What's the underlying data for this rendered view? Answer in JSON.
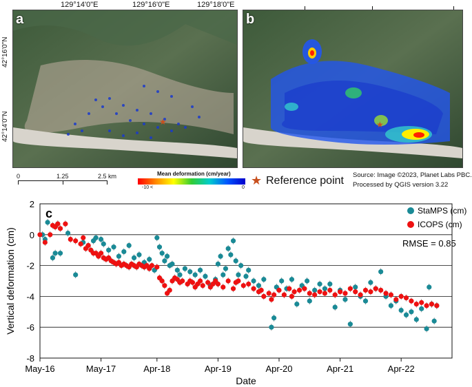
{
  "map": {
    "top_ticks": [
      "129°14'0\"E",
      "129°16'0\"E",
      "129°18'0\"E"
    ],
    "left_ticks": [
      "42°16'0\"N",
      "42°14'0\"N"
    ],
    "panel_a_label": "a",
    "panel_b_label": "b",
    "scale": {
      "labels": [
        "0",
        "1.25",
        "2.5 km"
      ]
    },
    "legend": {
      "title": "Mean deformation (cm/year)",
      "min_label": "-10 <",
      "max_label": "0",
      "colors": [
        "#ff0000",
        "#ff8800",
        "#ffff00",
        "#33cc33",
        "#00cccc",
        "#0055ff",
        "#0000cc"
      ]
    },
    "reference_label": "Reference point",
    "reference_color": "#c8501e",
    "source_line1": "Source: Image ©2023, Planet Labs PBC.",
    "source_line2": "Processed by QGIS version 3.22"
  },
  "chart_data": {
    "type": "scatter",
    "panel_label": "c",
    "xlabel": "Date",
    "ylabel": "Vertical deformation (cm)",
    "x_ticks": [
      "May-16",
      "May-17",
      "Apr-18",
      "Apr-19",
      "Apr-20",
      "Apr-21",
      "Apr-22"
    ],
    "y_ticks": [
      "2",
      "0",
      "-2",
      "-4",
      "-6",
      "-8"
    ],
    "ylim": [
      -8,
      2
    ],
    "xlim_months": [
      0,
      81
    ],
    "x_tick_months": [
      0,
      12,
      23,
      35,
      47,
      59,
      71
    ],
    "legend": [
      "StaMPS (cm)",
      "ICOPS (cm)"
    ],
    "annotation": "RMSE = 0.85",
    "series": [
      {
        "name": "StaMPS (cm)",
        "color": "#1a8a96",
        "points": [
          [
            0.5,
            0.0
          ],
          [
            1.0,
            -0.3
          ],
          [
            1.5,
            0.8
          ],
          [
            2.5,
            -1.5
          ],
          [
            3.0,
            -1.2
          ],
          [
            3.5,
            0.7
          ],
          [
            4.0,
            -1.2
          ],
          [
            5.5,
            0.1
          ],
          [
            7.0,
            -2.6
          ],
          [
            8.5,
            -0.5
          ],
          [
            9.5,
            -0.7
          ],
          [
            10.5,
            -0.4
          ],
          [
            11.0,
            -0.2
          ],
          [
            12.0,
            -0.3
          ],
          [
            12.5,
            -0.6
          ],
          [
            13.5,
            -1.0
          ],
          [
            14.5,
            -0.8
          ],
          [
            15.5,
            -1.4
          ],
          [
            16.5,
            -1.1
          ],
          [
            17.5,
            -0.7
          ],
          [
            18.5,
            -1.5
          ],
          [
            19.5,
            -1.3
          ],
          [
            20.5,
            -1.8
          ],
          [
            21.5,
            -1.6
          ],
          [
            22.5,
            -2.3
          ],
          [
            23.0,
            -0.2
          ],
          [
            23.5,
            -0.8
          ],
          [
            24.0,
            -1.2
          ],
          [
            24.5,
            -1.7
          ],
          [
            25.0,
            -1.4
          ],
          [
            25.5,
            -2.0
          ],
          [
            26.0,
            -1.9
          ],
          [
            27.0,
            -2.3
          ],
          [
            27.5,
            -2.6
          ],
          [
            28.5,
            -2.2
          ],
          [
            29.5,
            -2.4
          ],
          [
            30.5,
            -2.6
          ],
          [
            31.5,
            -2.3
          ],
          [
            32.5,
            -2.7
          ],
          [
            33.5,
            -3.3
          ],
          [
            34.5,
            -2.9
          ],
          [
            35.0,
            -1.9
          ],
          [
            35.5,
            -1.4
          ],
          [
            36.0,
            -2.6
          ],
          [
            36.5,
            -2.2
          ],
          [
            37.0,
            -0.9
          ],
          [
            37.5,
            -1.3
          ],
          [
            38.0,
            -0.4
          ],
          [
            38.5,
            -1.7
          ],
          [
            39.0,
            -2.6
          ],
          [
            39.5,
            -2.0
          ],
          [
            40.5,
            -2.7
          ],
          [
            41.0,
            -2.3
          ],
          [
            42.0,
            -3.0
          ],
          [
            43.0,
            -3.3
          ],
          [
            44.0,
            -2.9
          ],
          [
            45.5,
            -6.0
          ],
          [
            46.0,
            -5.4
          ],
          [
            46.5,
            -3.4
          ],
          [
            47.5,
            -3.0
          ],
          [
            48.5,
            -3.5
          ],
          [
            49.5,
            -2.9
          ],
          [
            50.5,
            -4.5
          ],
          [
            51.5,
            -3.3
          ],
          [
            52.5,
            -3.0
          ],
          [
            53.0,
            -4.3
          ],
          [
            54.0,
            -3.6
          ],
          [
            55.0,
            -3.2
          ],
          [
            56.0,
            -3.5
          ],
          [
            57.0,
            -3.2
          ],
          [
            58.0,
            -4.7
          ],
          [
            59.0,
            -3.6
          ],
          [
            60.0,
            -4.2
          ],
          [
            61.0,
            -5.8
          ],
          [
            62.0,
            -3.4
          ],
          [
            63.0,
            -4.0
          ],
          [
            64.0,
            -4.3
          ],
          [
            65.0,
            -3.1
          ],
          [
            66.0,
            -3.5
          ],
          [
            67.0,
            -2.4
          ],
          [
            68.0,
            -4.0
          ],
          [
            69.0,
            -4.6
          ],
          [
            70.0,
            -4.3
          ],
          [
            71.0,
            -4.9
          ],
          [
            72.0,
            -5.2
          ],
          [
            73.0,
            -5.0
          ],
          [
            74.0,
            -5.5
          ],
          [
            75.0,
            -4.8
          ],
          [
            76.0,
            -6.1
          ],
          [
            76.5,
            -3.4
          ],
          [
            77.0,
            -4.5
          ],
          [
            77.5,
            -5.6
          ],
          [
            78.0,
            -4.6
          ]
        ]
      },
      {
        "name": "ICOPS (cm)",
        "color": "#ee1111",
        "points": [
          [
            0.0,
            0.0
          ],
          [
            1.0,
            -0.5
          ],
          [
            2.0,
            0.0
          ],
          [
            2.5,
            0.6
          ],
          [
            3.0,
            0.5
          ],
          [
            3.5,
            0.7
          ],
          [
            4.0,
            0.4
          ],
          [
            5.0,
            0.7
          ],
          [
            6.0,
            -0.3
          ],
          [
            7.0,
            -0.4
          ],
          [
            8.0,
            -0.6
          ],
          [
            8.5,
            -0.2
          ],
          [
            9.0,
            -0.9
          ],
          [
            9.5,
            -0.7
          ],
          [
            10.0,
            -1.0
          ],
          [
            10.5,
            -1.2
          ],
          [
            11.0,
            -1.2
          ],
          [
            11.5,
            -1.4
          ],
          [
            12.0,
            -1.2
          ],
          [
            12.5,
            -1.5
          ],
          [
            13.0,
            -1.6
          ],
          [
            13.5,
            -1.5
          ],
          [
            14.0,
            -1.7
          ],
          [
            14.5,
            -1.8
          ],
          [
            15.0,
            -1.9
          ],
          [
            15.5,
            -1.8
          ],
          [
            16.0,
            -2.0
          ],
          [
            16.5,
            -1.9
          ],
          [
            17.0,
            -2.0
          ],
          [
            17.5,
            -2.1
          ],
          [
            18.0,
            -1.9
          ],
          [
            18.5,
            -2.0
          ],
          [
            19.0,
            -2.1
          ],
          [
            19.5,
            -1.9
          ],
          [
            20.0,
            -2.0
          ],
          [
            20.5,
            -2.1
          ],
          [
            21.0,
            -2.0
          ],
          [
            21.5,
            -2.2
          ],
          [
            22.0,
            -2.0
          ],
          [
            23.0,
            -2.1
          ],
          [
            23.5,
            -2.8
          ],
          [
            24.0,
            -3.0
          ],
          [
            24.5,
            -3.3
          ],
          [
            25.0,
            -3.8
          ],
          [
            25.5,
            -3.6
          ],
          [
            26.0,
            -3.0
          ],
          [
            26.5,
            -2.8
          ],
          [
            27.0,
            -2.9
          ],
          [
            27.5,
            -3.1
          ],
          [
            28.0,
            -3.0
          ],
          [
            29.0,
            -3.2
          ],
          [
            29.5,
            -3.0
          ],
          [
            30.0,
            -3.1
          ],
          [
            30.5,
            -3.4
          ],
          [
            31.0,
            -3.2
          ],
          [
            31.5,
            -3.0
          ],
          [
            32.0,
            -3.3
          ],
          [
            33.0,
            -3.1
          ],
          [
            33.5,
            -3.4
          ],
          [
            34.0,
            -3.2
          ],
          [
            34.5,
            -3.0
          ],
          [
            35.0,
            -3.2
          ],
          [
            36.0,
            -3.4
          ],
          [
            37.0,
            -3.0
          ],
          [
            38.0,
            -3.5
          ],
          [
            38.5,
            -3.1
          ],
          [
            39.0,
            -3.0
          ],
          [
            40.0,
            -3.3
          ],
          [
            41.0,
            -3.2
          ],
          [
            42.0,
            -3.5
          ],
          [
            43.0,
            -3.7
          ],
          [
            43.5,
            -3.6
          ],
          [
            44.0,
            -4.0
          ],
          [
            45.0,
            -3.8
          ],
          [
            45.5,
            -4.2
          ],
          [
            46.0,
            -3.9
          ],
          [
            47.0,
            -3.6
          ],
          [
            48.0,
            -3.9
          ],
          [
            49.0,
            -3.5
          ],
          [
            49.5,
            -4.0
          ],
          [
            50.0,
            -3.7
          ],
          [
            51.0,
            -3.6
          ],
          [
            52.0,
            -3.5
          ],
          [
            53.0,
            -3.8
          ],
          [
            54.0,
            -3.9
          ],
          [
            55.0,
            -3.7
          ],
          [
            56.0,
            -3.8
          ],
          [
            57.0,
            -3.6
          ],
          [
            58.0,
            -3.9
          ],
          [
            59.0,
            -3.7
          ],
          [
            60.0,
            -3.8
          ],
          [
            61.0,
            -3.5
          ],
          [
            62.0,
            -3.7
          ],
          [
            63.0,
            -3.9
          ],
          [
            64.0,
            -3.6
          ],
          [
            65.0,
            -3.7
          ],
          [
            66.0,
            -3.5
          ],
          [
            67.0,
            -3.6
          ],
          [
            68.0,
            -3.8
          ],
          [
            69.0,
            -3.9
          ],
          [
            70.0,
            -4.2
          ],
          [
            71.0,
            -4.0
          ],
          [
            72.0,
            -4.1
          ],
          [
            73.0,
            -4.3
          ],
          [
            74.0,
            -4.5
          ],
          [
            75.0,
            -4.4
          ],
          [
            76.0,
            -4.6
          ],
          [
            77.0,
            -4.5
          ],
          [
            78.0,
            -4.6
          ]
        ]
      }
    ]
  }
}
